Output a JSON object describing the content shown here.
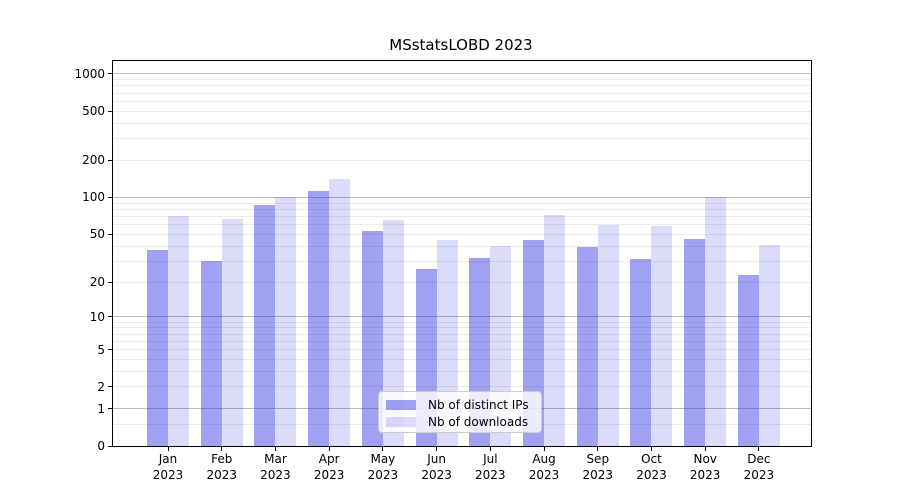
{
  "chart_data": {
    "type": "bar",
    "title": "MSstatsLOBD 2023",
    "categories": [
      "Jan",
      "Feb",
      "Mar",
      "Apr",
      "May",
      "Jun",
      "Jul",
      "Aug",
      "Sep",
      "Oct",
      "Nov",
      "Dec"
    ],
    "x_year_label": "2023",
    "series": [
      {
        "name": "Nb of distinct IPs",
        "color": "rgba(30,30,225,0.42)",
        "values": [
          37,
          30,
          87,
          113,
          53,
          26,
          32,
          45,
          39,
          31,
          46,
          23
        ]
      },
      {
        "name": "Nb of downloads",
        "color": "rgba(30,30,225,0.16)",
        "values": [
          70,
          67,
          100,
          141,
          66,
          45,
          40,
          72,
          60,
          59,
          100,
          41
        ]
      }
    ],
    "yscale": "log10(1+y)",
    "ylim": [
      0,
      1270
    ],
    "yticks": [
      1000,
      500,
      200,
      100,
      50,
      20,
      10,
      5,
      2,
      1,
      0
    ],
    "major_gridlines": [
      1000,
      100,
      10,
      1
    ],
    "minor_gridlines": [
      900,
      800,
      700,
      600,
      500,
      400,
      300,
      200,
      90,
      80,
      70,
      60,
      50,
      40,
      30,
      20,
      9,
      8,
      7,
      6,
      5,
      4,
      3,
      2,
      0.5
    ],
    "grid": true,
    "legend": {
      "position": "bottom-center",
      "entries": [
        "Nb of distinct IPs",
        "Nb of downloads"
      ]
    },
    "colors": {
      "major_grid": "#bcbcbc",
      "minor_grid": "#ebebeb",
      "axis": "#000000",
      "text": "#000000",
      "background": "#ffffff"
    }
  }
}
